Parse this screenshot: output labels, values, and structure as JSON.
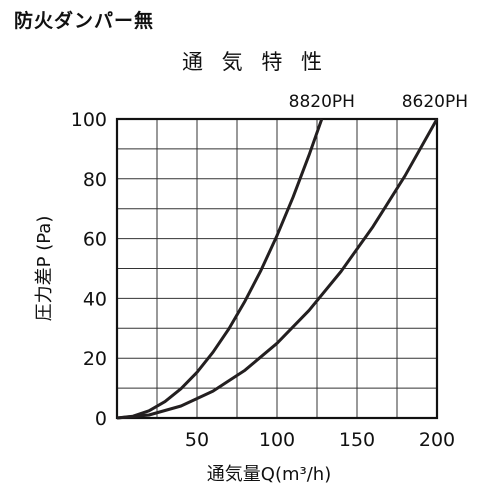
{
  "header": {
    "text": "防火ダンパー無"
  },
  "chart_data": {
    "type": "line",
    "title": "通 気 特 性",
    "xlabel": "通気量Q(m³/h)",
    "ylabel": "圧力差P (Pa)",
    "xlim": [
      0,
      200
    ],
    "ylim": [
      0,
      100
    ],
    "xticks": [
      50,
      100,
      150,
      200
    ],
    "yticks": [
      0,
      20,
      40,
      60,
      80,
      100
    ],
    "grid": true,
    "series": [
      {
        "name": "8820PH",
        "x": [
          0,
          10,
          20,
          30,
          40,
          50,
          60,
          70,
          80,
          90,
          100,
          110,
          120,
          128
        ],
        "y": [
          0,
          0.6,
          2.4,
          5.5,
          9.8,
          15.3,
          22.0,
          29.9,
          39.1,
          49.4,
          61.0,
          73.8,
          87.9,
          100
        ]
      },
      {
        "name": "8620PH",
        "x": [
          0,
          20,
          40,
          60,
          80,
          100,
          120,
          140,
          160,
          180,
          200
        ],
        "y": [
          0,
          1.0,
          4.0,
          9.0,
          16.0,
          25.0,
          36.0,
          49.0,
          64.0,
          81.0,
          100
        ]
      }
    ],
    "line_color": "#231f20"
  }
}
